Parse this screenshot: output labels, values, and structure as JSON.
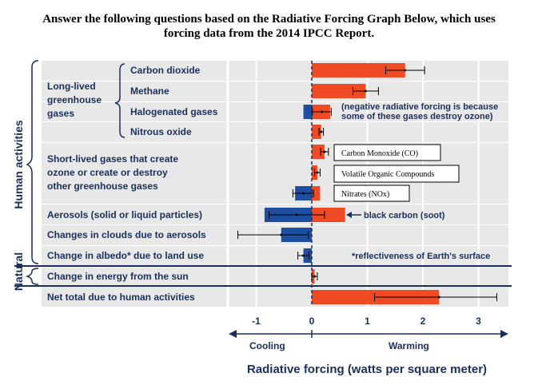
{
  "page": {
    "heading_line1": "Answer the following questions based on the Radiative Forcing Graph Below, which uses",
    "heading_line2": "forcing data from the 2014 IPCC Report."
  },
  "chart_data": {
    "type": "bar",
    "orientation": "horizontal",
    "xlabel": "Radiative forcing (watts per square meter)",
    "xlim": [
      -1.45,
      3.45
    ],
    "xticks": [
      -1,
      0,
      1,
      2,
      3
    ],
    "direction_labels": {
      "negative": "Cooling",
      "positive": "Warming"
    },
    "colors": {
      "warming": "#ef4a23",
      "cooling": "#1d4ea0",
      "text": "#1a2f5c"
    },
    "rows": [
      {
        "key": "co2",
        "label": "Carbon dioxide",
        "value": 1.68,
        "lo": 1.33,
        "hi": 2.03
      },
      {
        "key": "ch4",
        "label": "Methane",
        "value": 0.97,
        "lo": 0.74,
        "hi": 1.2
      },
      {
        "key": "halo",
        "label": "Halogenated gases",
        "segments": [
          -0.15,
          0.33
        ],
        "value": 0.18,
        "lo": 0.01,
        "hi": 0.35
      },
      {
        "key": "n2o",
        "label": "Nitrous oxide",
        "value": 0.17,
        "lo": 0.13,
        "hi": 0.21
      },
      {
        "key": "co",
        "label": "",
        "value": 0.23,
        "lo": 0.16,
        "hi": 0.3
      },
      {
        "key": "voc",
        "label": "",
        "value": 0.1,
        "lo": 0.05,
        "hi": 0.15
      },
      {
        "key": "nox",
        "label": "",
        "segments": [
          -0.3,
          0.15
        ],
        "value": -0.15,
        "lo": -0.34,
        "hi": 0.03
      },
      {
        "key": "aerosol",
        "label": "Aerosols (solid or liquid particles)",
        "segments": [
          -0.85,
          0.6
        ],
        "value": -0.27,
        "lo": -0.77,
        "hi": 0.23
      },
      {
        "key": "clouds",
        "label": "Changes in clouds due to aerosols",
        "value": -0.55,
        "lo": -1.33,
        "hi": -0.06
      },
      {
        "key": "albedo",
        "label": "Change in albedo* due to land use",
        "value": -0.15,
        "lo": -0.25,
        "hi": -0.05
      },
      {
        "key": "sun",
        "label": "Change in energy from the sun",
        "value": 0.05,
        "lo": 0.0,
        "hi": 0.1
      },
      {
        "key": "net",
        "label": "Net total due to human activities",
        "value": 2.29,
        "lo": 1.13,
        "hi": 3.33
      }
    ],
    "group_labels": {
      "longlived": [
        "Long-lived",
        "greenhouse",
        "gases"
      ],
      "shortlived": [
        "Short-lived gases that create",
        "ozone or create or destroy",
        "other greenhouse gases"
      ],
      "human": "Human activities",
      "natural": "Natural"
    },
    "boxed_labels": {
      "co": "Carbon Monoxide (CO)",
      "voc": "Volatile Organic Compounds",
      "nox": "Nitrates (NOx)"
    },
    "annotations": {
      "halo_note_line1": "(negative radiative forcing is because",
      "halo_note_line2": "some of these gases destroy ozone)",
      "soot": "black carbon (soot)",
      "albedo_note": "*reflectiveness of Earth's surface"
    }
  }
}
